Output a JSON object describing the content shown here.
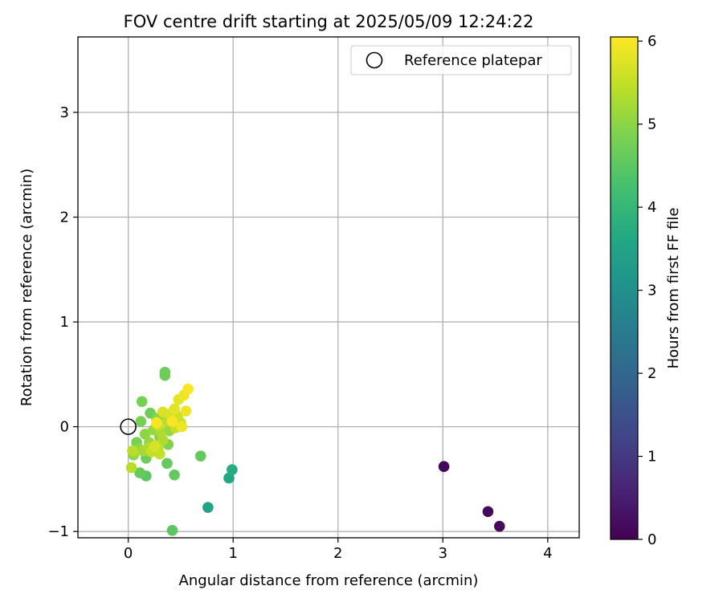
{
  "chart_data": {
    "type": "scatter",
    "title": "FOV centre drift starting at 2025/05/09 12:24:22",
    "xlabel": "Angular distance from reference (arcmin)",
    "ylabel": "Rotation from reference (arcmin)",
    "xlim": [
      -0.48,
      4.3
    ],
    "ylim": [
      -1.06,
      3.72
    ],
    "xticks": [
      0,
      1,
      2,
      3,
      4
    ],
    "xtick_labels": [
      "0",
      "1",
      "2",
      "3",
      "4"
    ],
    "yticks": [
      -1,
      0,
      1,
      2,
      3
    ],
    "ytick_labels": [
      "−1",
      "0",
      "1",
      "2",
      "3"
    ],
    "grid": true,
    "legend": {
      "placement": "top-right",
      "entries": [
        "Reference platepar"
      ]
    },
    "colorbar": {
      "label": "Hours from first FF file",
      "min": 0,
      "max": 6.05,
      "ticks": [
        0,
        1,
        2,
        3,
        4,
        5,
        6
      ],
      "tick_labels": [
        "0",
        "1",
        "2",
        "3",
        "4",
        "5",
        "6"
      ],
      "colormap": "viridis"
    },
    "reference_point": {
      "x": 0,
      "y": 0
    },
    "points": [
      {
        "x": 3.01,
        "y": -0.38,
        "hours": 0.05
      },
      {
        "x": 3.43,
        "y": -0.81,
        "hours": 0.1
      },
      {
        "x": 3.54,
        "y": -0.95,
        "hours": 0.15
      },
      {
        "x": 0.76,
        "y": -0.77,
        "hours": 3.5
      },
      {
        "x": 0.96,
        "y": -0.49,
        "hours": 3.6
      },
      {
        "x": 0.99,
        "y": -0.41,
        "hours": 3.7
      },
      {
        "x": 0.42,
        "y": -0.99,
        "hours": 4.5
      },
      {
        "x": 0.44,
        "y": -0.46,
        "hours": 4.6
      },
      {
        "x": 0.69,
        "y": -0.28,
        "hours": 4.6
      },
      {
        "x": 0.37,
        "y": -0.35,
        "hours": 4.6
      },
      {
        "x": 0.17,
        "y": -0.47,
        "hours": 4.5
      },
      {
        "x": 0.11,
        "y": -0.44,
        "hours": 4.6
      },
      {
        "x": 0.35,
        "y": 0.52,
        "hours": 4.7
      },
      {
        "x": 0.35,
        "y": 0.49,
        "hours": 4.7
      },
      {
        "x": 0.13,
        "y": 0.24,
        "hours": 4.8
      },
      {
        "x": 0.12,
        "y": 0.05,
        "hours": 4.8
      },
      {
        "x": 0.21,
        "y": 0.13,
        "hours": 4.7
      },
      {
        "x": 0.17,
        "y": -0.3,
        "hours": 4.7
      },
      {
        "x": 0.08,
        "y": -0.15,
        "hours": 4.8
      },
      {
        "x": 0.38,
        "y": -0.17,
        "hours": 4.9
      },
      {
        "x": 0.3,
        "y": -0.1,
        "hours": 4.9
      },
      {
        "x": 0.27,
        "y": 0.08,
        "hours": 4.9
      },
      {
        "x": 0.34,
        "y": 0.1,
        "hours": 4.9
      },
      {
        "x": 0.16,
        "y": -0.07,
        "hours": 5.0
      },
      {
        "x": 0.05,
        "y": -0.27,
        "hours": 5.0
      },
      {
        "x": 0.1,
        "y": -0.21,
        "hours": 5.0
      },
      {
        "x": 0.2,
        "y": -0.15,
        "hours": 5.1
      },
      {
        "x": 0.24,
        "y": -0.03,
        "hours": 5.1
      },
      {
        "x": 0.39,
        "y": -0.04,
        "hours": 5.1
      },
      {
        "x": 0.41,
        "y": 0.04,
        "hours": 5.2
      },
      {
        "x": 0.06,
        "y": -0.24,
        "hours": 5.2
      },
      {
        "x": 0.14,
        "y": -0.23,
        "hours": 5.2
      },
      {
        "x": 0.19,
        "y": -0.2,
        "hours": 5.3
      },
      {
        "x": 0.28,
        "y": -0.21,
        "hours": 5.3
      },
      {
        "x": 0.33,
        "y": -0.13,
        "hours": 5.3
      },
      {
        "x": 0.31,
        "y": -0.05,
        "hours": 5.3
      },
      {
        "x": 0.37,
        "y": 0.05,
        "hours": 5.4
      },
      {
        "x": 0.03,
        "y": -0.39,
        "hours": 5.4
      },
      {
        "x": 0.04,
        "y": -0.23,
        "hours": 5.4
      },
      {
        "x": 0.22,
        "y": -0.24,
        "hours": 5.5
      },
      {
        "x": 0.26,
        "y": -0.18,
        "hours": 5.5
      },
      {
        "x": 0.3,
        "y": -0.26,
        "hours": 5.5
      },
      {
        "x": 0.45,
        "y": -0.01,
        "hours": 5.5
      },
      {
        "x": 0.47,
        "y": 0.1,
        "hours": 5.6
      },
      {
        "x": 0.5,
        "y": 0.04,
        "hours": 5.6
      },
      {
        "x": 0.28,
        "y": 0.02,
        "hours": 5.6
      },
      {
        "x": 0.33,
        "y": 0.14,
        "hours": 5.7
      },
      {
        "x": 0.4,
        "y": 0.12,
        "hours": 5.7
      },
      {
        "x": 0.25,
        "y": -0.19,
        "hours": 5.7
      },
      {
        "x": 0.44,
        "y": 0.17,
        "hours": 5.8
      },
      {
        "x": 0.48,
        "y": 0.26,
        "hours": 5.8
      },
      {
        "x": 0.53,
        "y": 0.3,
        "hours": 5.9
      },
      {
        "x": 0.55,
        "y": 0.15,
        "hours": 5.9
      },
      {
        "x": 0.51,
        "y": 0.0,
        "hours": 5.9
      },
      {
        "x": 0.42,
        "y": 0.05,
        "hours": 6.0
      },
      {
        "x": 0.57,
        "y": 0.36,
        "hours": 6.0
      },
      {
        "x": 0.27,
        "y": 0.04,
        "hours": 6.0
      }
    ]
  }
}
